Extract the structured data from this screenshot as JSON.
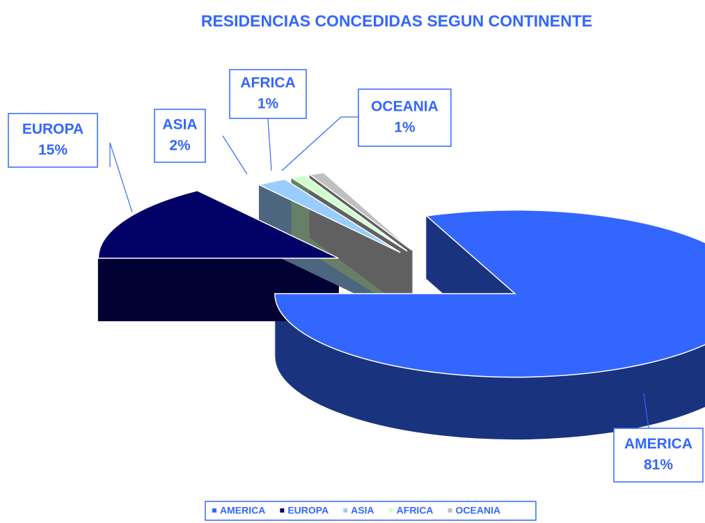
{
  "chart_data": {
    "type": "pie",
    "title": "RESIDENCIAS CONCEDIDAS SEGUN CONTINENTE",
    "categories": [
      "AMERICA",
      "EUROPA",
      "ASIA",
      "AFRICA",
      "OCEANIA"
    ],
    "values": [
      81,
      15,
      2,
      1,
      1
    ],
    "value_labels": [
      "81%",
      "15%",
      "2%",
      "1%",
      "1%"
    ],
    "colors": [
      "#3366ff",
      "#000066",
      "#99ccff",
      "#ccffcc",
      "#c0c0c0"
    ],
    "legend": "bottom"
  }
}
